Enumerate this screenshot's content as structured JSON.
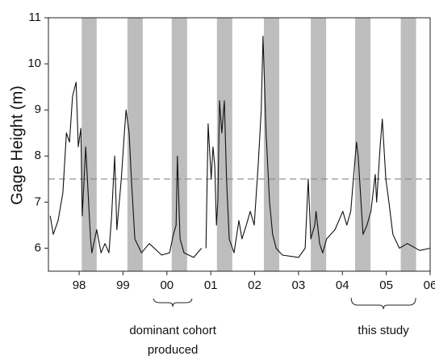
{
  "chart_data": {
    "type": "line",
    "y_label": "Gage Height (m)",
    "color": "#111111",
    "x": [
      1997.34,
      1997.41,
      1997.52,
      1997.63,
      1997.71,
      1997.78,
      1997.85,
      1997.93,
      1997.98,
      1998.04,
      1998.07,
      1998.15,
      1998.26,
      1998.29,
      1998.4,
      1998.5,
      1998.59,
      1998.68,
      1998.74,
      1998.81,
      1998.86,
      1998.96,
      1999.03,
      1999.07,
      1999.14,
      1999.19,
      1999.27,
      1999.42,
      1999.6,
      1999.88,
      2000.06,
      2000.15,
      2000.21,
      2000.24,
      2000.3,
      2000.39,
      2000.61,
      2000.79,
      2000.83,
      2000.89,
      2000.94,
      2001.01,
      2001.05,
      2001.09,
      2001.13,
      2001.16,
      2001.2,
      2001.25,
      2001.31,
      2001.36,
      2001.42,
      2001.53,
      2001.64,
      2001.71,
      2001.81,
      2001.9,
      2001.99,
      2002.08,
      2002.15,
      2002.19,
      2002.26,
      2002.34,
      2002.41,
      2002.49,
      2002.63,
      2003.0,
      2003.15,
      2003.22,
      2003.28,
      2003.37,
      2003.4,
      2003.48,
      2003.55,
      2003.64,
      2003.83,
      2004.01,
      2004.1,
      2004.19,
      2004.25,
      2004.32,
      2004.36,
      2004.47,
      2004.56,
      2004.65,
      2004.75,
      2004.78,
      2004.86,
      2004.91,
      2004.99,
      2005.06,
      2005.15,
      2005.3,
      2005.48,
      2005.76,
      2006.0
    ],
    "values": [
      6.7,
      6.3,
      6.6,
      7.2,
      8.5,
      8.3,
      9.3,
      9.6,
      8.2,
      8.6,
      6.7,
      8.2,
      6.2,
      5.9,
      6.4,
      5.9,
      6.1,
      5.9,
      6.7,
      8.0,
      6.4,
      7.5,
      8.5,
      9.0,
      8.5,
      7.5,
      6.2,
      5.9,
      6.1,
      5.85,
      5.9,
      6.3,
      6.5,
      8.0,
      6.2,
      5.9,
      5.8,
      6.0,
      null,
      6.0,
      8.7,
      7.5,
      8.2,
      7.8,
      6.5,
      7.0,
      9.2,
      8.5,
      9.2,
      7.5,
      6.2,
      5.9,
      6.6,
      6.2,
      6.5,
      6.8,
      6.5,
      7.8,
      9.0,
      10.6,
      8.5,
      7.0,
      6.3,
      6.0,
      5.85,
      5.8,
      6.0,
      7.5,
      6.2,
      6.5,
      6.8,
      6.1,
      5.9,
      6.2,
      6.4,
      6.8,
      6.5,
      6.8,
      7.5,
      8.3,
      8.0,
      6.3,
      6.5,
      6.8,
      7.6,
      7.0,
      8.2,
      8.8,
      7.5,
      7.0,
      6.3,
      6.0,
      6.1,
      5.95,
      6.0
    ],
    "shaded_periods": [
      [
        1998.06,
        1998.4
      ],
      [
        1999.1,
        1999.45
      ],
      [
        2000.11,
        2000.46
      ],
      [
        2001.14,
        2001.49
      ],
      [
        2002.21,
        2002.56
      ],
      [
        2003.28,
        2003.63
      ],
      [
        2004.29,
        2004.64
      ],
      [
        2005.33,
        2005.68
      ]
    ],
    "shade_color": "#bdbdbd",
    "reference_line": {
      "value": 7.5,
      "color": "#888888",
      "dashed": true
    },
    "xlim": [
      1997.3,
      2006.0
    ],
    "xticks": [
      {
        "value": 1998,
        "label": "98"
      },
      {
        "value": 1999,
        "label": "99"
      },
      {
        "value": 2000,
        "label": "00"
      },
      {
        "value": 2001,
        "label": "01"
      },
      {
        "value": 2002,
        "label": "02"
      },
      {
        "value": 2003,
        "label": "03"
      },
      {
        "value": 2004,
        "label": "04"
      },
      {
        "value": 2005,
        "label": "05"
      },
      {
        "value": 2006,
        "label": "06"
      }
    ],
    "ylim": [
      5.5,
      11
    ],
    "yticks": [
      6,
      7,
      8,
      9,
      10,
      11
    ],
    "grid": false,
    "annotations": [
      {
        "lines": [
          "dominant cohort",
          "produced"
        ],
        "x_range": [
          1999.7,
          2000.57
        ]
      },
      {
        "lines": [
          "this study"
        ],
        "x_range": [
          2004.2,
          2005.67
        ]
      }
    ]
  }
}
